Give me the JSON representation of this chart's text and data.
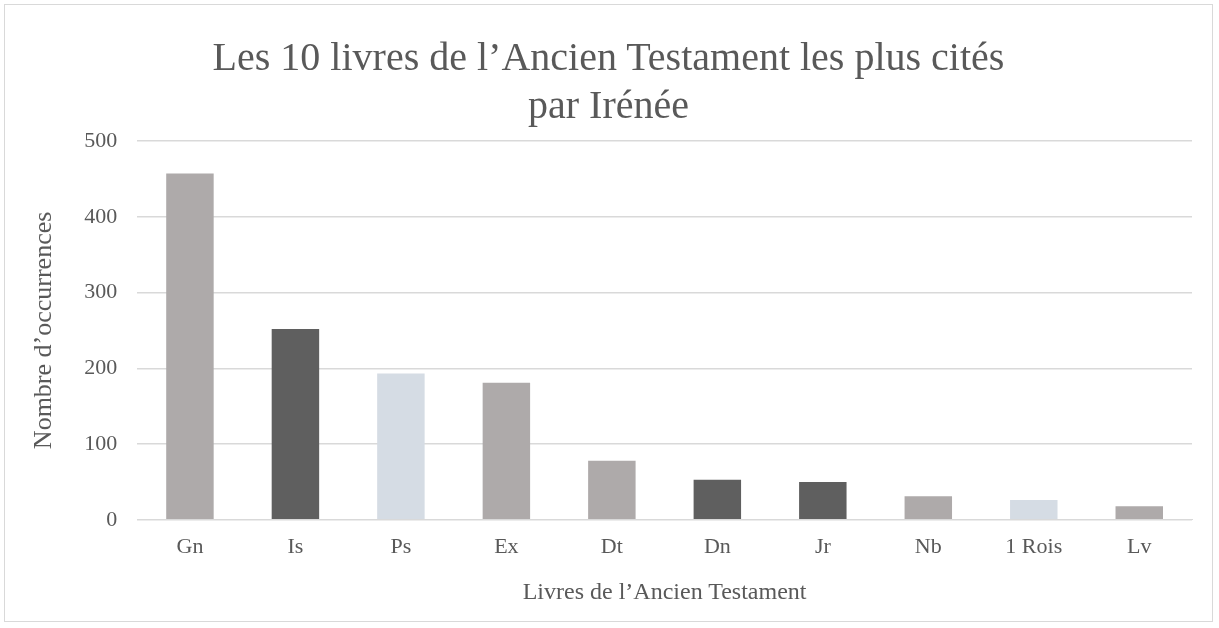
{
  "chart_data": {
    "type": "bar",
    "title": "Les 10 livres de l’Ancien Testament les plus cités par Irénée",
    "xlabel": "Livres de l’Ancien Testament",
    "ylabel": "Nombre d’occurrences",
    "categories": [
      "Gn",
      "Is",
      "Ps",
      "Ex",
      "Dt",
      "Dn",
      "Jr",
      "Nb",
      "1 Rois",
      "Lv"
    ],
    "values": [
      457,
      252,
      193,
      181,
      78,
      53,
      50,
      31,
      26,
      18
    ],
    "colors": [
      "#aeaaaa",
      "#5f5f5f",
      "#d5dce4",
      "#aeaaaa",
      "#aeaaaa",
      "#5f5f5f",
      "#5f5f5f",
      "#aeaaaa",
      "#d5dce4",
      "#aeaaaa"
    ],
    "ylim": [
      0,
      500
    ],
    "yticks": [
      0,
      100,
      200,
      300,
      400,
      500
    ],
    "grid": "y",
    "legend": false
  }
}
